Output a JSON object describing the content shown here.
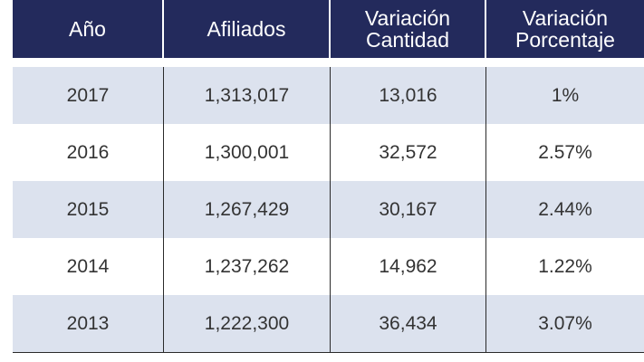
{
  "table": {
    "headers": [
      "Año",
      "Afiliados",
      "Variación\nCantidad",
      "Variación\nPorcentaje"
    ],
    "rows": [
      {
        "year": "2017",
        "afiliados": "1,313,017",
        "cantidad": "13,016",
        "porcentaje": "1%"
      },
      {
        "year": "2016",
        "afiliados": "1,300,001",
        "cantidad": "32,572",
        "porcentaje": "2.57%"
      },
      {
        "year": "2015",
        "afiliados": "1,267,429",
        "cantidad": "30,167",
        "porcentaje": "2.44%"
      },
      {
        "year": "2014",
        "afiliados": "1,237,262",
        "cantidad": "14,962",
        "porcentaje": "1.22%"
      },
      {
        "year": "2013",
        "afiliados": "1,222,300",
        "cantidad": "36,434",
        "porcentaje": "3.07%"
      }
    ]
  },
  "colors": {
    "header_bg": "#232a5c",
    "shaded_row": "#dce2ee"
  }
}
